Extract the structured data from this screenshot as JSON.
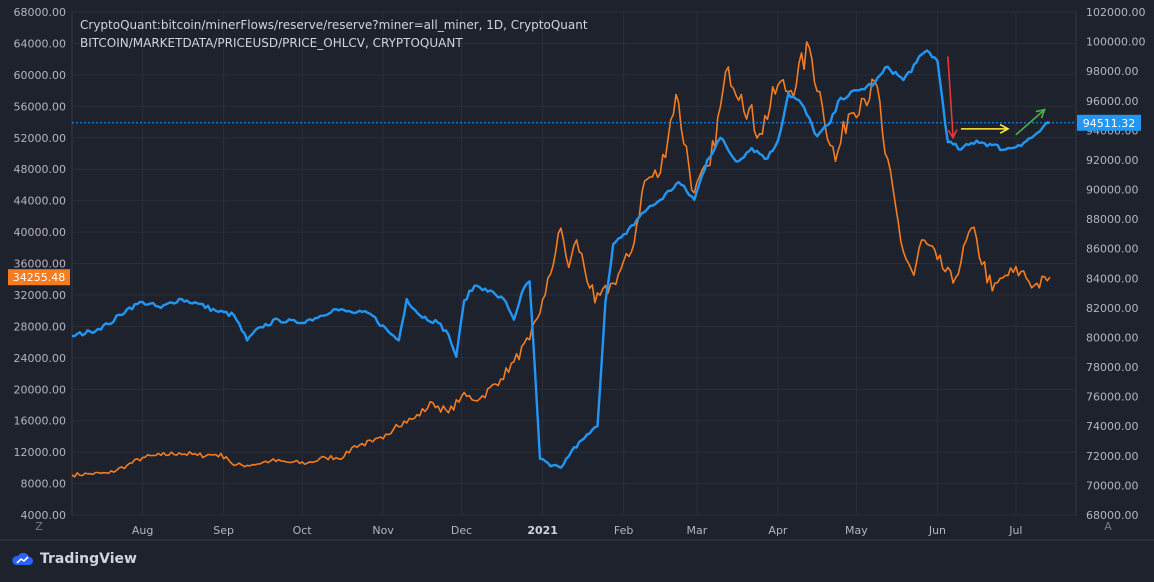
{
  "header": {
    "line1": "CryptoQuant:bitcoin/minerFlows/reserve/reserve?miner=all_miner, 1D, CryptoQuant",
    "line2": "BITCOIN/MARKETDATA/PRICEUSD/PRICE_OHLCV, CRYPTOQUANT"
  },
  "footer": {
    "brand": "TradingView"
  },
  "corner_left": "Z",
  "corner_right": "A",
  "colors": {
    "background": "#1e222d",
    "grid": "#2a2e39",
    "axis_text": "#b2b5be",
    "price": "#f57c1f",
    "reserve": "#2196f3",
    "price_badge": "#f57c1f",
    "reserve_badge": "#2196f3",
    "arrow_down": "#e53935",
    "arrow_flat": "#ffeb3b",
    "arrow_up": "#4caf50"
  },
  "chart_data": {
    "type": "line",
    "xlabel": "",
    "x_range": [
      "2020-07-05",
      "2021-07-24"
    ],
    "x_ticks": [
      {
        "label": "Aug",
        "date": "2020-08-01"
      },
      {
        "label": "Sep",
        "date": "2020-09-01"
      },
      {
        "label": "Oct",
        "date": "2020-10-01"
      },
      {
        "label": "Nov",
        "date": "2020-11-01"
      },
      {
        "label": "Dec",
        "date": "2020-12-01"
      },
      {
        "label": "2021",
        "date": "2021-01-01",
        "bold": true
      },
      {
        "label": "Feb",
        "date": "2021-02-01"
      },
      {
        "label": "Mar",
        "date": "2021-03-01"
      },
      {
        "label": "Apr",
        "date": "2021-04-01"
      },
      {
        "label": "May",
        "date": "2021-05-01"
      },
      {
        "label": "Jun",
        "date": "2021-06-01"
      },
      {
        "label": "Jul",
        "date": "2021-07-01"
      }
    ],
    "left_axis": {
      "ylim": [
        4000,
        68000
      ],
      "ticks": [
        "68000.00",
        "64000.00",
        "60000.00",
        "56000.00",
        "52000.00",
        "48000.00",
        "44000.00",
        "40000.00",
        "36000.00",
        "32000.00",
        "28000.00",
        "24000.00",
        "20000.00",
        "16000.00",
        "12000.00",
        "8000.00",
        "4000.00"
      ],
      "last_value_label": "34255.48",
      "last_value": 34255.48
    },
    "right_axis": {
      "ylim": [
        68000,
        102000
      ],
      "ticks": [
        "102000.00",
        "100000.00",
        "98000.00",
        "96000.00",
        "94000.00",
        "92000.00",
        "90000.00",
        "88000.00",
        "86000.00",
        "84000.00",
        "82000.00",
        "80000.00",
        "78000.00",
        "76000.00",
        "74000.00",
        "72000.00",
        "70000.00",
        "68000.00"
      ],
      "last_value_label": "94511.32",
      "last_value": 94511.32
    },
    "series": [
      {
        "key": "price",
        "axis": "left",
        "points": [
          [
            "2020-07-05",
            9100
          ],
          [
            "2020-07-12",
            9250
          ],
          [
            "2020-07-19",
            9300
          ],
          [
            "2020-07-26",
            10300
          ],
          [
            "2020-08-01",
            11300
          ],
          [
            "2020-08-08",
            11600
          ],
          [
            "2020-08-15",
            11900
          ],
          [
            "2020-08-22",
            11600
          ],
          [
            "2020-08-29",
            11700
          ],
          [
            "2020-09-02",
            11400
          ],
          [
            "2020-09-05",
            10300
          ],
          [
            "2020-09-12",
            10400
          ],
          [
            "2020-09-19",
            10900
          ],
          [
            "2020-09-26",
            10700
          ],
          [
            "2020-10-03",
            10600
          ],
          [
            "2020-10-10",
            11300
          ],
          [
            "2020-10-17",
            11400
          ],
          [
            "2020-10-21",
            12800
          ],
          [
            "2020-10-28",
            13300
          ],
          [
            "2020-11-01",
            13700
          ],
          [
            "2020-11-06",
            15500
          ],
          [
            "2020-11-13",
            16300
          ],
          [
            "2020-11-20",
            18300
          ],
          [
            "2020-11-26",
            17000
          ],
          [
            "2020-12-01",
            19100
          ],
          [
            "2020-12-08",
            18800
          ],
          [
            "2020-12-16",
            21300
          ],
          [
            "2020-12-21",
            23500
          ],
          [
            "2020-12-27",
            26300
          ],
          [
            "2021-01-02",
            32000
          ],
          [
            "2021-01-08",
            40500
          ],
          [
            "2021-01-11",
            35500
          ],
          [
            "2021-01-14",
            39000
          ],
          [
            "2021-01-21",
            31000
          ],
          [
            "2021-01-28",
            33500
          ],
          [
            "2021-02-04",
            37500
          ],
          [
            "2021-02-09",
            46500
          ],
          [
            "2021-02-15",
            47500
          ],
          [
            "2021-02-21",
            57500
          ],
          [
            "2021-02-28",
            45000
          ],
          [
            "2021-03-06",
            48500
          ],
          [
            "2021-03-13",
            61000
          ],
          [
            "2021-03-18",
            57500
          ],
          [
            "2021-03-25",
            52500
          ],
          [
            "2021-04-01",
            58700
          ],
          [
            "2021-04-06",
            58000
          ],
          [
            "2021-04-13",
            63500
          ],
          [
            "2021-04-18",
            56000
          ],
          [
            "2021-04-23",
            49000
          ],
          [
            "2021-04-28",
            55000
          ],
          [
            "2021-05-03",
            57000
          ],
          [
            "2021-05-09",
            58500
          ],
          [
            "2021-05-12",
            50000
          ],
          [
            "2021-05-19",
            37500
          ],
          [
            "2021-05-23",
            34500
          ],
          [
            "2021-05-26",
            39000
          ],
          [
            "2021-06-01",
            36500
          ],
          [
            "2021-06-07",
            33500
          ],
          [
            "2021-06-14",
            40500
          ],
          [
            "2021-06-22",
            32500
          ],
          [
            "2021-06-27",
            34500
          ],
          [
            "2021-07-03",
            35000
          ],
          [
            "2021-07-08",
            33200
          ],
          [
            "2021-07-13",
            33800
          ],
          [
            "2021-07-14",
            34255
          ]
        ]
      },
      {
        "key": "reserve",
        "axis": "right",
        "points": [
          [
            "2020-07-05",
            80100
          ],
          [
            "2020-07-12",
            80400
          ],
          [
            "2020-07-19",
            80900
          ],
          [
            "2020-07-26",
            81900
          ],
          [
            "2020-08-01",
            82400
          ],
          [
            "2020-08-08",
            82000
          ],
          [
            "2020-08-15",
            82600
          ],
          [
            "2020-08-22",
            82300
          ],
          [
            "2020-08-29",
            81800
          ],
          [
            "2020-09-05",
            81500
          ],
          [
            "2020-09-10",
            79800
          ],
          [
            "2020-09-15",
            80700
          ],
          [
            "2020-09-22",
            81200
          ],
          [
            "2020-09-29",
            81000
          ],
          [
            "2020-10-06",
            81300
          ],
          [
            "2020-10-13",
            81900
          ],
          [
            "2020-10-20",
            81700
          ],
          [
            "2020-10-27",
            81600
          ],
          [
            "2020-11-03",
            80400
          ],
          [
            "2020-11-07",
            79800
          ],
          [
            "2020-11-10",
            82600
          ],
          [
            "2020-11-15",
            81500
          ],
          [
            "2020-11-22",
            81000
          ],
          [
            "2020-11-26",
            80200
          ],
          [
            "2020-11-29",
            78700
          ],
          [
            "2020-12-02",
            82500
          ],
          [
            "2020-12-06",
            83500
          ],
          [
            "2020-12-10",
            83300
          ],
          [
            "2020-12-14",
            82900
          ],
          [
            "2020-12-18",
            82400
          ],
          [
            "2020-12-21",
            81200
          ],
          [
            "2020-12-24",
            83000
          ],
          [
            "2020-12-27",
            83800
          ],
          [
            "2020-12-29",
            78000
          ],
          [
            "2020-12-31",
            71800
          ],
          [
            "2021-01-04",
            71300
          ],
          [
            "2021-01-08",
            71200
          ],
          [
            "2021-01-12",
            72300
          ],
          [
            "2021-01-17",
            73200
          ],
          [
            "2021-01-22",
            74000
          ],
          [
            "2021-01-25",
            82400
          ],
          [
            "2021-01-28",
            86300
          ],
          [
            "2021-02-02",
            87000
          ],
          [
            "2021-02-08",
            88400
          ],
          [
            "2021-02-15",
            89300
          ],
          [
            "2021-02-22",
            90500
          ],
          [
            "2021-02-28",
            89300
          ],
          [
            "2021-03-05",
            92000
          ],
          [
            "2021-03-10",
            93500
          ],
          [
            "2021-03-16",
            91900
          ],
          [
            "2021-03-22",
            92800
          ],
          [
            "2021-03-28",
            92100
          ],
          [
            "2021-04-01",
            93300
          ],
          [
            "2021-04-05",
            96500
          ],
          [
            "2021-04-10",
            95800
          ],
          [
            "2021-04-16",
            93600
          ],
          [
            "2021-04-21",
            94500
          ],
          [
            "2021-04-25",
            96200
          ],
          [
            "2021-05-02",
            96700
          ],
          [
            "2021-05-08",
            97200
          ],
          [
            "2021-05-13",
            98300
          ],
          [
            "2021-05-19",
            97400
          ],
          [
            "2021-05-24",
            98600
          ],
          [
            "2021-05-28",
            99400
          ],
          [
            "2021-06-01",
            98700
          ],
          [
            "2021-06-05",
            93200
          ],
          [
            "2021-06-10",
            92700
          ],
          [
            "2021-06-16",
            93300
          ],
          [
            "2021-06-22",
            93000
          ],
          [
            "2021-06-27",
            92700
          ],
          [
            "2021-07-02",
            93000
          ],
          [
            "2021-07-07",
            93500
          ],
          [
            "2021-07-14",
            94511
          ]
        ]
      }
    ],
    "annotations": [
      {
        "key": "arrow_down",
        "from": [
          "2021-06-05",
          99000
        ],
        "to": [
          "2021-06-07",
          93500
        ]
      },
      {
        "key": "arrow_flat",
        "from": [
          "2021-06-10",
          94100
        ],
        "to": [
          "2021-06-28",
          94100
        ]
      },
      {
        "key": "arrow_up",
        "from": [
          "2021-07-01",
          93700
        ],
        "to": [
          "2021-07-12",
          95400
        ]
      }
    ]
  }
}
